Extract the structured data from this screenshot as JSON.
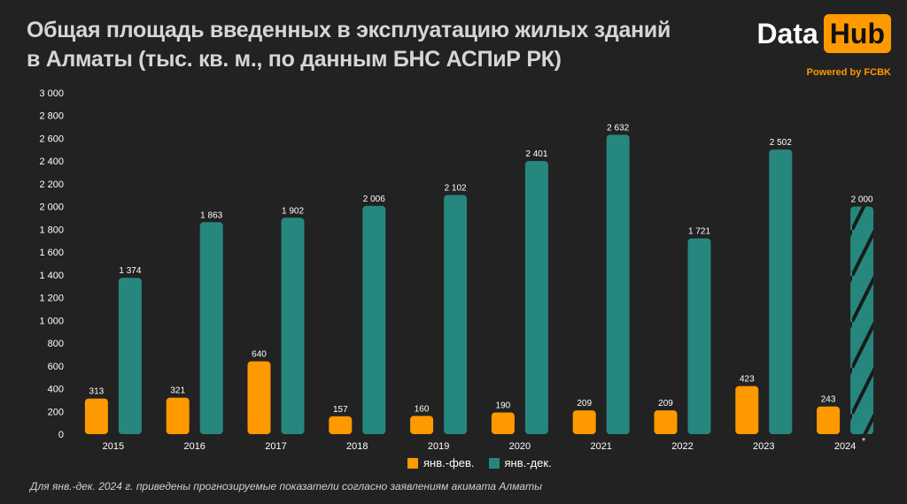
{
  "header": {
    "title_line1": "Общая площадь введенных в эксплуатацию жилых зданий",
    "title_line2": "в Алматы (тыс. кв. м., по данным БНС АСПиР РК)",
    "logo_data": "Data",
    "logo_hub": "Hub",
    "powered_by": "Powered by FCBK"
  },
  "footnote": "Для янв.-дек. 2024 г. приведены прогнозируемые показатели согласно заявлениям акимата Алматы",
  "colors": {
    "background": "#222222",
    "orange": "#ff9900",
    "teal": "#26877f",
    "hatch": "#1a1a1a"
  },
  "chart_data": {
    "type": "bar",
    "title": "Общая площадь введенных в эксплуатацию жилых зданий в Алматы (тыс. кв. м., по данным БНС АСПиР РК)",
    "categories": [
      "2015",
      "2016",
      "2017",
      "2018",
      "2019",
      "2020",
      "2021",
      "2022",
      "2023",
      "2024"
    ],
    "category_marks": [
      "",
      "",
      "",
      "",
      "",
      "",
      "",
      "",
      "",
      "*"
    ],
    "series": [
      {
        "name": "янв.-фев.",
        "color": "#ff9900",
        "values": [
          313,
          321,
          640,
          157,
          160,
          190,
          209,
          209,
          423,
          243
        ]
      },
      {
        "name": "янв.-дек.",
        "color": "#26877f",
        "values": [
          1374,
          1863,
          1902,
          2006,
          2102,
          2401,
          2632,
          1721,
          2502,
          2000
        ],
        "forecast_index": 9
      }
    ],
    "data_labels": [
      [
        "313",
        "321",
        "640",
        "157",
        "160",
        "190",
        "209",
        "209",
        "423",
        "243"
      ],
      [
        "1 374",
        "1 863",
        "1 902",
        "2 006",
        "2 102",
        "2 401",
        "2 632",
        "1 721",
        "2 502",
        "2 000"
      ]
    ],
    "ylim": [
      0,
      3000
    ],
    "yticks": [
      0,
      200,
      400,
      600,
      800,
      1000,
      1200,
      1400,
      1600,
      1800,
      2000,
      2200,
      2400,
      2600,
      2800,
      3000
    ],
    "ytick_labels": [
      "0",
      "200",
      "400",
      "600",
      "800",
      "1 000",
      "1 200",
      "1 400",
      "1 600",
      "1 800",
      "2 000",
      "2 200",
      "2 400",
      "2 600",
      "2 800",
      "3 000"
    ],
    "xlabel": "",
    "ylabel": "",
    "grid": false,
    "legend": "bottom"
  }
}
